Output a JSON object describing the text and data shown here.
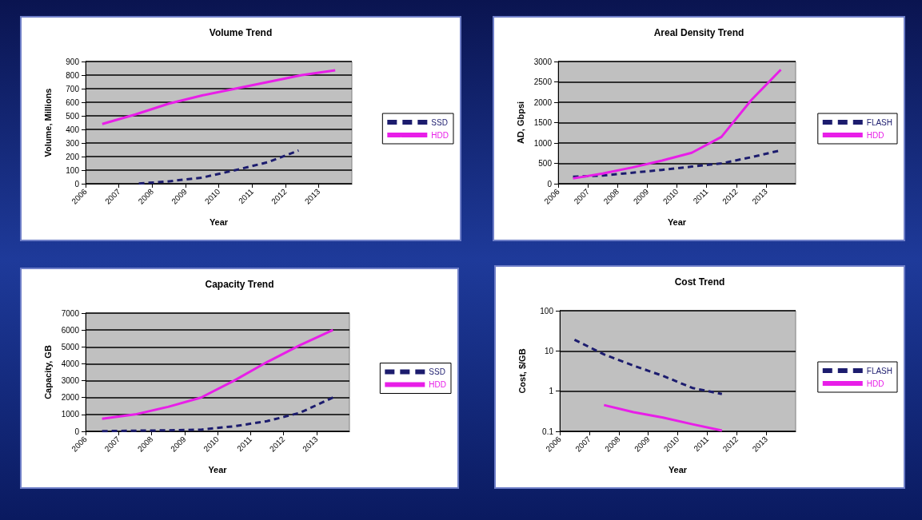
{
  "chart_data": [
    {
      "type": "line",
      "title": "Volume Trend",
      "xlabel": "Year",
      "ylabel": "Volume, Millions",
      "legend": "right",
      "grid": "y",
      "marker": "none",
      "xlim": [
        2006,
        2014
      ],
      "xticks": [
        2006,
        2007,
        2008,
        2009,
        2010,
        2011,
        2012,
        2013
      ],
      "ylim": [
        0,
        900
      ],
      "yticks": [
        0,
        100,
        200,
        300,
        400,
        500,
        600,
        700,
        800,
        900
      ],
      "x": [
        2006.5,
        2007.5,
        2008.5,
        2009.5,
        2010.5,
        2011.5,
        2012.5,
        2013.5
      ],
      "series": [
        {
          "name": "SSD",
          "color": "#1c1c6e",
          "line_style": "dashed",
          "x": [
            2007.6,
            2008.4,
            2009.5,
            2010.5,
            2011.5,
            2012.4
          ],
          "values": [
            2,
            15,
            45,
            100,
            160,
            245
          ]
        },
        {
          "name": "HDD",
          "color": "#e81ee8",
          "line_style": "solid",
          "values": [
            440,
            510,
            590,
            650,
            700,
            750,
            800,
            835
          ]
        }
      ]
    },
    {
      "type": "line",
      "title": "Areal Density Trend",
      "xlabel": "Year",
      "ylabel": "AD, Gbpsi",
      "legend": "right",
      "grid": "y",
      "marker": "none",
      "xlim": [
        2006,
        2014
      ],
      "xticks": [
        2006,
        2007,
        2008,
        2009,
        2010,
        2011,
        2012,
        2013
      ],
      "ylim": [
        0,
        3000
      ],
      "yticks": [
        0,
        500,
        1000,
        1500,
        2000,
        2500,
        3000
      ],
      "x": [
        2006.5,
        2007.5,
        2008.5,
        2009.5,
        2010.5,
        2011.5,
        2012.5,
        2013.5
      ],
      "series": [
        {
          "name": "FLASH",
          "color": "#1c1c6e",
          "line_style": "dashed",
          "values": [
            170,
            200,
            270,
            340,
            420,
            500,
            650,
            820
          ]
        },
        {
          "name": "HDD",
          "color": "#e81ee8",
          "line_style": "solid",
          "values": [
            130,
            250,
            400,
            570,
            760,
            1150,
            2050,
            2800
          ]
        }
      ]
    },
    {
      "type": "line",
      "title": "Capacity Trend",
      "xlabel": "Year",
      "ylabel": "Capacity, GB",
      "legend": "right",
      "grid": "y",
      "marker": "none",
      "xlim": [
        2006,
        2014
      ],
      "xticks": [
        2006,
        2007,
        2008,
        2009,
        2010,
        2011,
        2012,
        2013
      ],
      "ylim": [
        0,
        7000
      ],
      "yticks": [
        0,
        1000,
        2000,
        3000,
        4000,
        5000,
        6000,
        7000
      ],
      "x": [
        2006.5,
        2007.5,
        2008.5,
        2009.5,
        2010.5,
        2011.5,
        2012.5,
        2013.5
      ],
      "series": [
        {
          "name": "SSD",
          "color": "#1c1c6e",
          "line_style": "dashed",
          "values": [
            10,
            40,
            60,
            100,
            300,
            600,
            1100,
            2000
          ]
        },
        {
          "name": "HDD",
          "color": "#e81ee8",
          "line_style": "solid",
          "values": [
            750,
            1000,
            1450,
            2000,
            3000,
            4100,
            5100,
            6000
          ]
        }
      ]
    },
    {
      "type": "line",
      "title": "Cost Trend",
      "xlabel": "Year",
      "ylabel": "Cost, $/GB",
      "legend": "right",
      "grid": "y",
      "marker": "none",
      "log": "y",
      "xlim": [
        2006,
        2014
      ],
      "xticks": [
        2006,
        2007,
        2008,
        2009,
        2010,
        2011,
        2012,
        2013
      ],
      "ylim": [
        0.1,
        100
      ],
      "yticks": [
        0.1,
        1,
        10,
        100
      ],
      "x": [
        2006.5,
        2007.5,
        2008.5,
        2009.5,
        2010.5,
        2011.5
      ],
      "series": [
        {
          "name": "FLASH",
          "color": "#1c1c6e",
          "line_style": "dashed",
          "values": [
            19,
            8.2,
            4.3,
            2.4,
            1.2,
            0.85
          ]
        },
        {
          "name": "HDD",
          "color": "#e81ee8",
          "line_style": "solid",
          "x": [
            2007.5,
            2008.5,
            2009.5,
            2010.5,
            2011.5
          ],
          "values": [
            0.45,
            0.3,
            0.22,
            0.15,
            0.105
          ]
        }
      ]
    }
  ]
}
